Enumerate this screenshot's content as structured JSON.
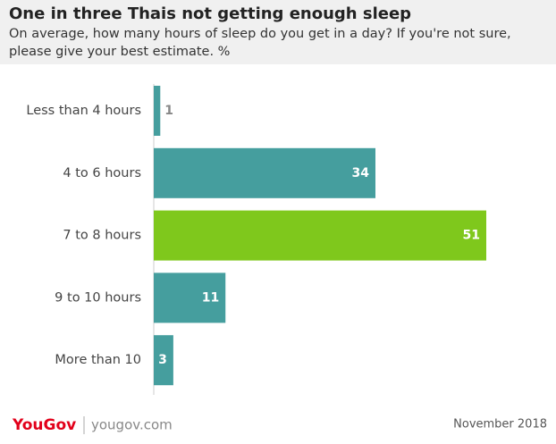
{
  "chart_data": {
    "type": "bar",
    "orientation": "horizontal",
    "title": "One in three Thais not getting enough sleep",
    "subtitle": "On average, how many hours of sleep do you get in a day? If you're not sure, please give your best estimate. %",
    "categories": [
      "Less than 4 hours",
      "4 to 6 hours",
      "7 to 8 hours",
      "9 to 10 hours",
      "More than 10"
    ],
    "values": [
      1,
      34,
      51,
      11,
      3
    ],
    "colors": [
      "#459e9e",
      "#459e9e",
      "#7fc81c",
      "#459e9e",
      "#459e9e"
    ],
    "footer": {
      "brand": "YouGov",
      "site": "yougov.com",
      "date": "November 2018"
    }
  }
}
